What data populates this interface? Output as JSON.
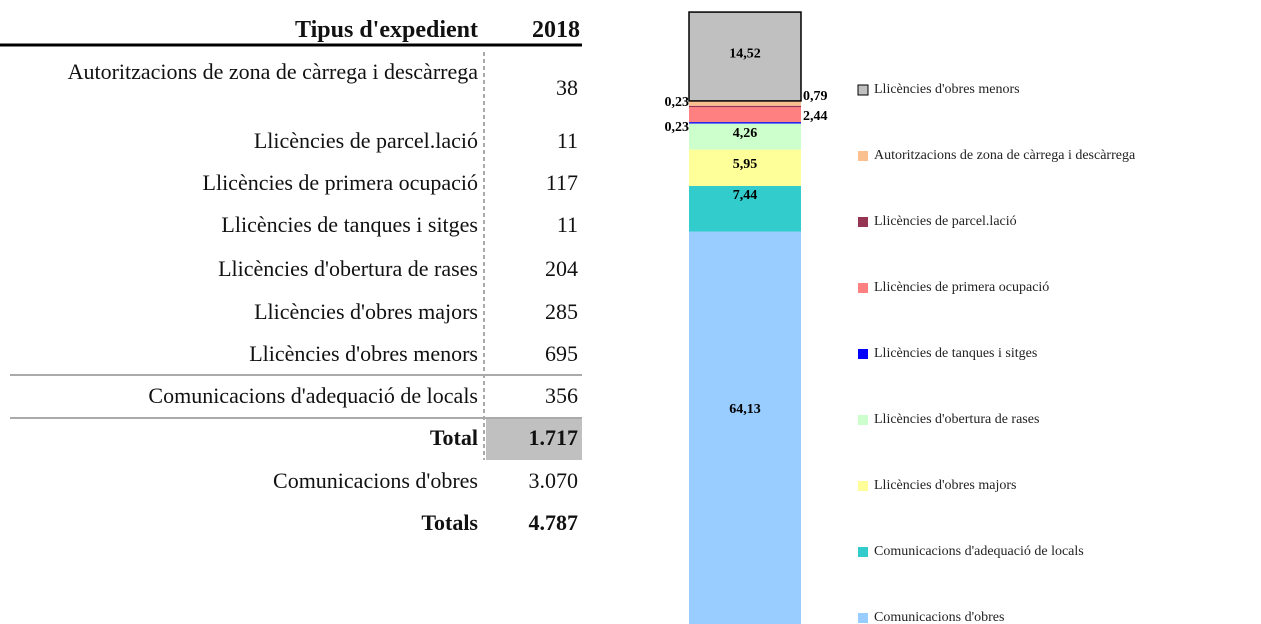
{
  "table": {
    "header": [
      "Tipus d'expedient",
      "2018"
    ],
    "rows": [
      [
        "Autoritzacions de zona de càrrega i descàrrega",
        "38"
      ],
      [
        "Llicències de parcel.lació",
        "11"
      ],
      [
        "Llicències de primera ocupació",
        "117"
      ],
      [
        "Llicències de tanques i sitges",
        "11"
      ],
      [
        "Llicències d'obertura de rases",
        "204"
      ],
      [
        "Llicències d'obres majors",
        "285"
      ],
      [
        "Llicències d'obres menors",
        "695"
      ],
      [
        "Comunicacions d'adequació de locals",
        "356"
      ],
      [
        "Total",
        "1.717"
      ],
      [
        "Comunicacions d'obres",
        "3.070"
      ],
      [
        "Totals",
        "4.787"
      ]
    ]
  },
  "chart_data": {
    "type": "stacked_bar",
    "ylim": [
      0,
      100
    ],
    "series": [
      {
        "name": "Comunicacions d'obres",
        "color": "#99ccff",
        "values": [
          64.13
        ],
        "value_labels": [
          "64,13"
        ]
      },
      {
        "name": "Comunicacions d'adequació de locals",
        "color": "#33cccc",
        "values": [
          7.44
        ],
        "value_labels": [
          "7,44"
        ]
      },
      {
        "name": "Llicències d'obres majors",
        "color": "#ffff99",
        "values": [
          5.95
        ],
        "value_labels": [
          "5,95"
        ]
      },
      {
        "name": "Llicències d'obertura de rases",
        "color": "#ccffcc",
        "values": [
          4.26
        ],
        "value_labels": [
          "4,26"
        ]
      },
      {
        "name": "Llicències de tanques i sitges",
        "color": "#0000ff",
        "values": [
          0.23
        ],
        "value_labels": [
          "0,23"
        ]
      },
      {
        "name": "Llicències de primera ocupació",
        "color": "#ff8080",
        "values": [
          2.44
        ],
        "value_labels": [
          "2,44"
        ]
      },
      {
        "name": "Llicències de parcel.lació",
        "color": "#953553",
        "values": [
          0.23
        ],
        "value_labels": [
          "0,23"
        ]
      },
      {
        "name": "Autoritzacions de zona de càrrega i descàrrega",
        "color": "#fac090",
        "values": [
          0.79
        ],
        "value_labels": [
          "0,79"
        ]
      },
      {
        "name": "Llicències d'obres menors",
        "color": "#c0c0c0",
        "values": [
          14.52
        ],
        "value_labels": [
          "14,52"
        ]
      }
    ]
  }
}
